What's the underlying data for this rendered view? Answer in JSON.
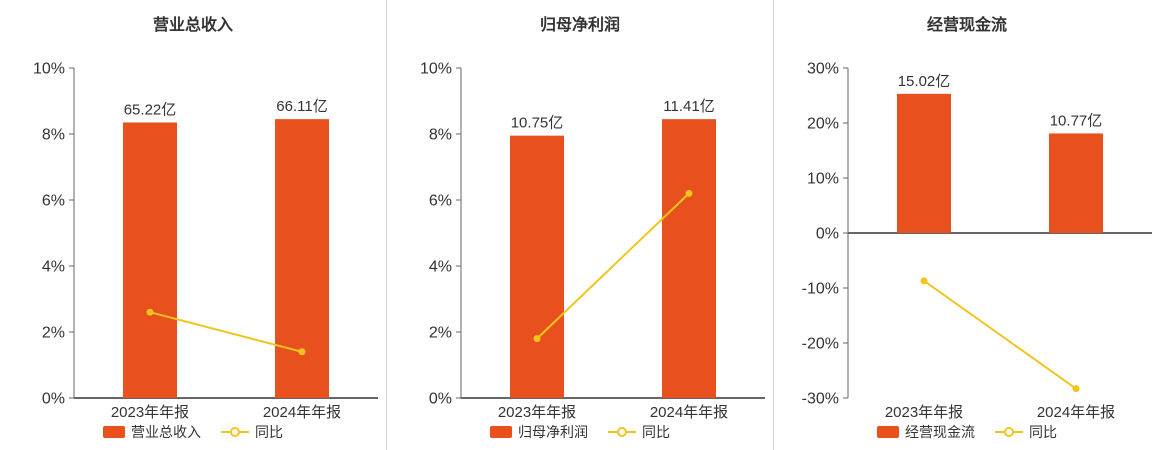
{
  "colors": {
    "bar": "#e8501e",
    "line": "#f2c51e",
    "axis": "#666666",
    "text": "#333333",
    "divider": "#d6d6d6",
    "background": "#ffffff"
  },
  "chart_data": [
    {
      "type": "bar+line",
      "title": "营业总收入",
      "categories": [
        "2023年年报",
        "2024年年报"
      ],
      "bars": {
        "name": "营业总收入",
        "labels": [
          "65.22亿",
          "66.11亿"
        ],
        "values": [
          8.35,
          8.45
        ]
      },
      "line": {
        "name": "同比",
        "values": [
          2.6,
          1.4
        ]
      },
      "ylim": [
        0,
        10
      ],
      "ytick_step": 2,
      "ytick_suffix": "%",
      "grid": false,
      "legend_position": "bottom"
    },
    {
      "type": "bar+line",
      "title": "归母净利润",
      "categories": [
        "2023年年报",
        "2024年年报"
      ],
      "bars": {
        "name": "归母净利润",
        "labels": [
          "10.75亿",
          "11.41亿"
        ],
        "values": [
          7.95,
          8.45
        ]
      },
      "line": {
        "name": "同比",
        "values": [
          1.8,
          6.2
        ]
      },
      "ylim": [
        0,
        10
      ],
      "ytick_step": 2,
      "ytick_suffix": "%",
      "grid": false,
      "legend_position": "bottom"
    },
    {
      "type": "bar+line",
      "title": "经营现金流",
      "categories": [
        "2023年年报",
        "2024年年报"
      ],
      "bars": {
        "name": "经营现金流",
        "labels": [
          "15.02亿",
          "10.77亿"
        ],
        "values": [
          25.3,
          18.1
        ]
      },
      "line": {
        "name": "同比",
        "values": [
          -8.7,
          -28.3
        ]
      },
      "ylim": [
        -30,
        30
      ],
      "ytick_step": 10,
      "ytick_suffix": "%",
      "grid": false,
      "legend_position": "bottom"
    }
  ]
}
